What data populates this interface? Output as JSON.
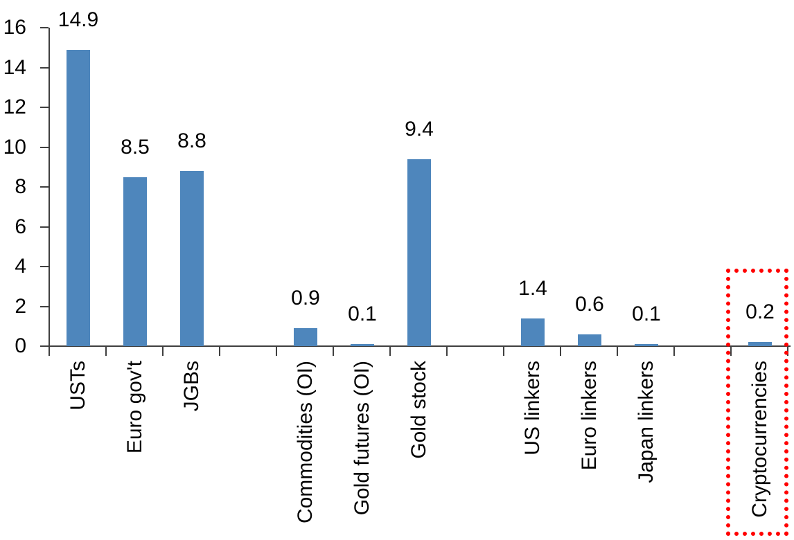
{
  "chart_data": {
    "type": "bar",
    "title": "",
    "xlabel": "",
    "ylabel": "",
    "categories": [
      "USTs",
      "Euro gov't",
      "JGBs",
      "Commodities (OI)",
      "Gold futures (OI)",
      "Gold stock",
      "US linkers",
      "Euro linkers",
      "Japan linkers",
      "Cryptocurrencies"
    ],
    "values": [
      14.9,
      8.5,
      8.8,
      0.9,
      0.1,
      9.4,
      1.4,
      0.6,
      0.1,
      0.2
    ],
    "data_labels": [
      "14.9",
      "8.5",
      "8.8",
      "0.9",
      "0.1",
      "9.4",
      "1.4",
      "0.6",
      "0.1",
      "0.2"
    ],
    "slots": [
      0,
      1,
      2,
      4,
      5,
      6,
      8,
      9,
      10,
      12
    ],
    "num_slots": 13,
    "ylim": [
      0,
      16
    ],
    "yticks": [
      0,
      2,
      4,
      6,
      8,
      10,
      12,
      14,
      16
    ],
    "grid": false,
    "legend": false,
    "x_label_rotation": 90,
    "bar_color": "#4E86BC",
    "axis_color": "#3F3F3F",
    "text_color": "#000000",
    "highlight": {
      "category": "Cryptocurrencies",
      "style": "dotted-box",
      "color": "#FF0000"
    }
  }
}
